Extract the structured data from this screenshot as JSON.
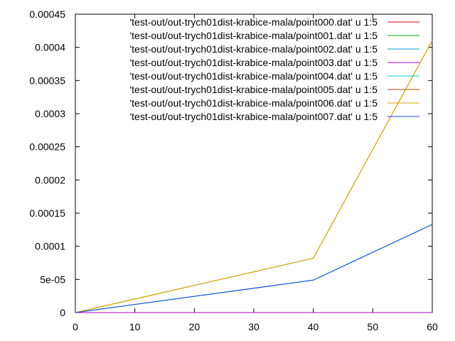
{
  "chart_data": {
    "type": "line",
    "title": "",
    "xlabel": "",
    "ylabel": "",
    "xlim": [
      0,
      60
    ],
    "ylim": [
      0,
      0.00045
    ],
    "x_ticks": [
      0,
      10,
      20,
      30,
      40,
      50,
      60
    ],
    "x_tick_labels": [
      "0",
      "10",
      "20",
      "30",
      "40",
      "50",
      "60"
    ],
    "y_ticks": [
      0,
      5e-05,
      0.0001,
      0.00015,
      0.0002,
      0.00025,
      0.0003,
      0.00035,
      0.0004,
      0.00045
    ],
    "y_tick_labels": [
      "0",
      "5e-05",
      "0.0001",
      "0.00015",
      "0.0002",
      "0.00025",
      "0.0003",
      "0.00035",
      "0.0004",
      "0.00045"
    ],
    "grid": false,
    "legend_position": "top-right",
    "x": [
      0,
      40,
      60
    ],
    "series": [
      {
        "name": "'test-out/out-trych01dist-krabice-mala/point000.dat' u 1:5",
        "color": "#cc0000",
        "values": [
          0,
          0,
          0
        ]
      },
      {
        "name": "'test-out/out-trych01dist-krabice-mala/point001.dat' u 1:5",
        "color": "#00aa00",
        "values": [
          0,
          0,
          0
        ]
      },
      {
        "name": "'test-out/out-trych01dist-krabice-mala/point002.dat' u 1:5",
        "color": "#0099cc",
        "values": [
          0,
          4.9e-05,
          0.000133
        ]
      },
      {
        "name": "'test-out/out-trych01dist-krabice-mala/point003.dat' u 1:5",
        "color": "#aa00cc",
        "values": [
          0,
          0,
          0
        ]
      },
      {
        "name": "'test-out/out-trych01dist-krabice-mala/point004.dat' u 1:5",
        "color": "#00cccc",
        "values": [
          0,
          4.9e-05,
          0.000133
        ]
      },
      {
        "name": "'test-out/out-trych01dist-krabice-mala/point005.dat' u 1:5",
        "color": "#bb4400",
        "values": [
          0,
          8.2e-05,
          0.00041
        ]
      },
      {
        "name": "'test-out/out-trych01dist-krabice-mala/point006.dat' u 1:5",
        "color": "#ccaa00",
        "values": [
          0,
          8.2e-05,
          0.00041
        ]
      },
      {
        "name": "'test-out/out-trych01dist-krabice-mala/point007.dat' u 1:5",
        "color": "#2244cc",
        "values": [
          0,
          4.9e-05,
          0.000133
        ]
      }
    ]
  }
}
